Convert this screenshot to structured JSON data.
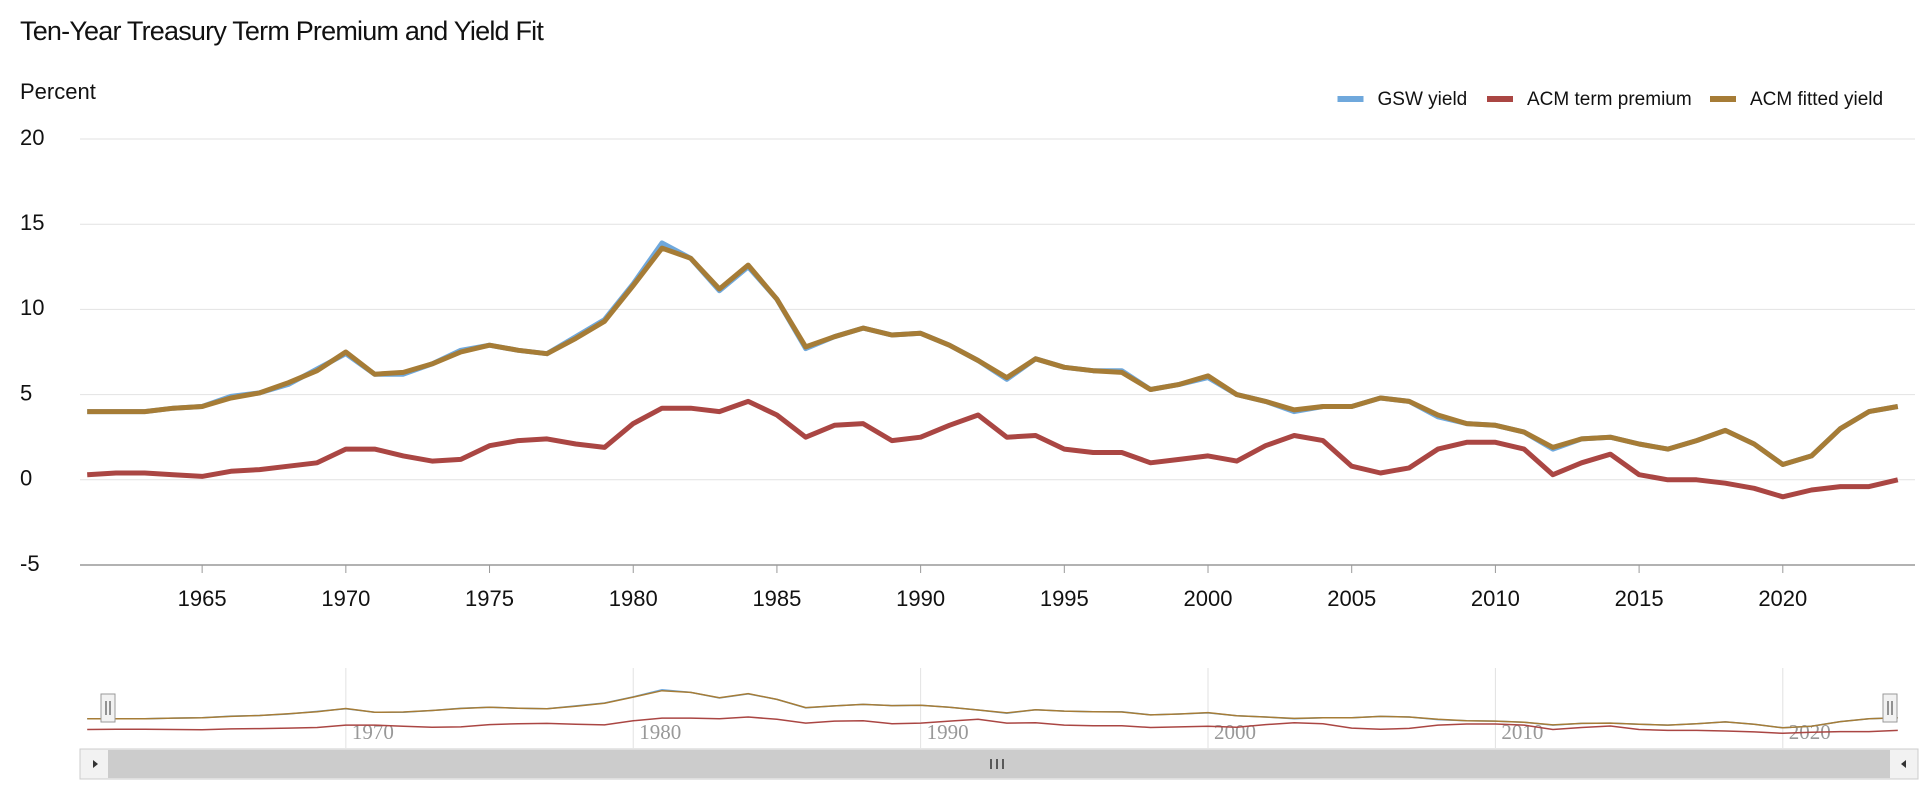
{
  "chart_data": {
    "type": "line",
    "title": "Ten-Year Treasury Term Premium and Yield Fit",
    "y_label": "Percent",
    "x": [
      1961,
      1962,
      1963,
      1964,
      1965,
      1966,
      1967,
      1968,
      1969,
      1970,
      1971,
      1972,
      1973,
      1974,
      1975,
      1976,
      1977,
      1978,
      1979,
      1980,
      1981,
      1982,
      1983,
      1984,
      1985,
      1986,
      1987,
      1988,
      1989,
      1990,
      1991,
      1992,
      1993,
      1994,
      1995,
      1996,
      1997,
      1998,
      1999,
      2000,
      2001,
      2002,
      2003,
      2004,
      2005,
      2006,
      2007,
      2008,
      2009,
      2010,
      2011,
      2012,
      2013,
      2014,
      2015,
      2016,
      2017,
      2018,
      2019,
      2020,
      2021,
      2022,
      2023,
      2024
    ],
    "series": [
      {
        "name": "GSW yield",
        "color": "#6fa8dc",
        "values": [
          4.0,
          4.0,
          4.0,
          4.2,
          4.3,
          4.9,
          5.1,
          5.6,
          6.5,
          7.4,
          6.2,
          6.2,
          6.8,
          7.6,
          7.9,
          7.6,
          7.4,
          8.4,
          9.4,
          11.5,
          13.9,
          13.0,
          11.1,
          12.5,
          10.6,
          7.7,
          8.4,
          8.9,
          8.5,
          8.6,
          7.9,
          7.0,
          5.9,
          7.1,
          6.6,
          6.4,
          6.4,
          5.3,
          5.6,
          6.0,
          5.0,
          4.6,
          4.0,
          4.3,
          4.3,
          4.8,
          4.6,
          3.7,
          3.3,
          3.2,
          2.8,
          1.8,
          2.4,
          2.5,
          2.1,
          1.8,
          2.3,
          2.9,
          2.1,
          0.9,
          1.4,
          3.0,
          4.0,
          4.3
        ]
      },
      {
        "name": "ACM term premium",
        "color": "#aa4643",
        "values": [
          0.3,
          0.4,
          0.4,
          0.3,
          0.2,
          0.5,
          0.6,
          0.8,
          1.0,
          1.8,
          1.8,
          1.4,
          1.1,
          1.2,
          2.0,
          2.3,
          2.4,
          2.1,
          1.9,
          3.3,
          4.2,
          4.2,
          4.0,
          4.6,
          3.8,
          2.5,
          3.2,
          3.3,
          2.3,
          2.5,
          3.2,
          3.8,
          2.5,
          2.6,
          1.8,
          1.6,
          1.6,
          1.0,
          1.2,
          1.4,
          1.1,
          2.0,
          2.6,
          2.3,
          0.8,
          0.4,
          0.7,
          1.8,
          2.2,
          2.2,
          1.8,
          0.3,
          1.0,
          1.5,
          0.3,
          0.0,
          0.0,
          -0.2,
          -0.5,
          -1.0,
          -0.6,
          -0.4,
          -0.4,
          0.0
        ]
      },
      {
        "name": "ACM fitted yield",
        "color": "#a67c36",
        "values": [
          4.0,
          4.0,
          4.0,
          4.2,
          4.3,
          4.8,
          5.1,
          5.7,
          6.4,
          7.5,
          6.2,
          6.3,
          6.8,
          7.5,
          7.9,
          7.6,
          7.4,
          8.3,
          9.3,
          11.4,
          13.6,
          13.0,
          11.2,
          12.6,
          10.6,
          7.8,
          8.4,
          8.9,
          8.5,
          8.6,
          7.9,
          7.0,
          6.0,
          7.1,
          6.6,
          6.4,
          6.3,
          5.3,
          5.6,
          6.1,
          5.0,
          4.6,
          4.1,
          4.3,
          4.3,
          4.8,
          4.6,
          3.8,
          3.3,
          3.2,
          2.8,
          1.9,
          2.4,
          2.5,
          2.1,
          1.8,
          2.3,
          2.9,
          2.1,
          0.9,
          1.4,
          3.0,
          4.0,
          4.3
        ]
      }
    ],
    "xlim": [
      1960.75,
      2024.6
    ],
    "xticks": [
      1965,
      1970,
      1975,
      1980,
      1985,
      1990,
      1995,
      2000,
      2005,
      2010,
      2015,
      2020
    ],
    "ylim": [
      -5,
      20
    ],
    "yticks": [
      -5,
      0,
      5,
      10,
      15,
      20
    ],
    "navigator_xticks": [
      1970,
      1980,
      1990,
      2000,
      2010,
      2020
    ],
    "grid": true,
    "legend": "top-right"
  }
}
